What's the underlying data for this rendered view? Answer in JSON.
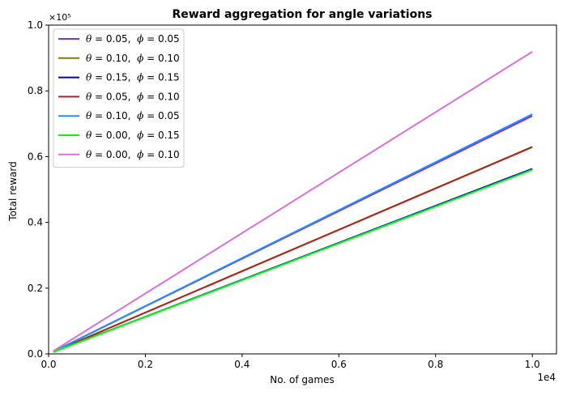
{
  "chart_data": {
    "type": "line",
    "title": "Reward aggregation for angle variations",
    "xlabel": "No. of games",
    "ylabel": "Total reward",
    "x_offset_text": "1e4",
    "y_offset_text": "×10⁵",
    "xlim": [
      0,
      1.05
    ],
    "ylim": [
      0,
      1.0
    ],
    "xticks": [
      "0.0",
      "0.2",
      "0.4",
      "0.6",
      "0.8",
      "1.0"
    ],
    "yticks": [
      "0.0",
      "0.2",
      "0.4",
      "0.6",
      "0.8",
      "1.0"
    ],
    "legend_position": "top-left",
    "grid": false,
    "series": [
      {
        "name": "θ = 0.05,  ϕ = 0.05",
        "theta": "0.05",
        "phi": "0.05",
        "color": "#8a2be2",
        "x": [
          0.01,
          1.0
        ],
        "y": [
          0.007,
          0.724
        ]
      },
      {
        "name": "θ = 0.10,  ϕ = 0.10",
        "theta": "0.10",
        "phi": "0.10",
        "color": "#808000",
        "x": [
          0.01,
          1.0
        ],
        "y": [
          0.006,
          0.63
        ]
      },
      {
        "name": "θ = 0.15,  ϕ = 0.15",
        "theta": "0.15",
        "phi": "0.15",
        "color": "#0000cd",
        "x": [
          0.01,
          1.0
        ],
        "y": [
          0.006,
          0.563
        ]
      },
      {
        "name": "θ = 0.05,  ϕ = 0.10",
        "theta": "0.05",
        "phi": "0.10",
        "color": "#b22222",
        "x": [
          0.01,
          1.0
        ],
        "y": [
          0.006,
          0.629
        ]
      },
      {
        "name": "θ = 0.10,  ϕ = 0.05",
        "theta": "0.10",
        "phi": "0.05",
        "color": "#1e90ff",
        "x": [
          0.01,
          1.0
        ],
        "y": [
          0.007,
          0.729
        ]
      },
      {
        "name": "θ = 0.00,  ϕ = 0.15",
        "theta": "0.00",
        "phi": "0.15",
        "color": "#00ff00",
        "x": [
          0.01,
          1.0
        ],
        "y": [
          0.006,
          0.56
        ]
      },
      {
        "name": "θ = 0.00,  ϕ = 0.10",
        "theta": "0.00",
        "phi": "0.10",
        "color": "#da70d6",
        "x": [
          0.01,
          1.0
        ],
        "y": [
          0.009,
          0.919
        ]
      }
    ]
  }
}
